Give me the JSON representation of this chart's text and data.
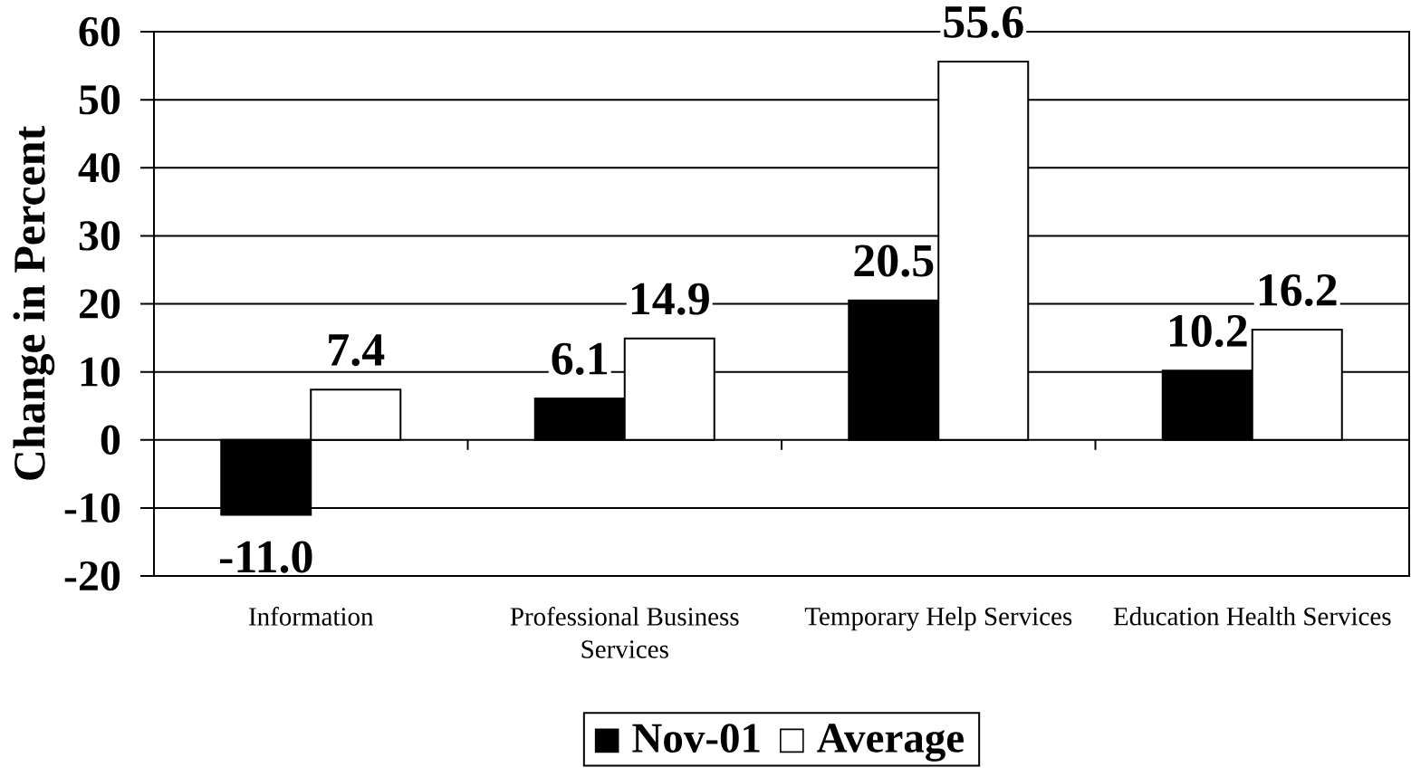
{
  "chart_data": {
    "type": "bar",
    "ylabel": "Change in Percent",
    "categories": [
      "Information",
      "Professional Business Services",
      "Temporary Help Services",
      "Education Health Services"
    ],
    "series": [
      {
        "name": "Nov-01",
        "color": "#000000",
        "values": [
          -11.0,
          6.1,
          20.5,
          10.2
        ],
        "value_labels": [
          "-11.0",
          "6.1",
          "20.5",
          "10.2"
        ]
      },
      {
        "name": "Average",
        "color": "#ffffff",
        "values": [
          7.4,
          14.9,
          55.6,
          16.2
        ],
        "value_labels": [
          "7.4",
          "14.9",
          "55.6",
          "16.2"
        ]
      }
    ],
    "ylim": [
      -20,
      60
    ],
    "yticks": [
      -20,
      -10,
      0,
      10,
      20,
      30,
      40,
      50,
      60
    ],
    "grid": "y",
    "legend": "bottom"
  }
}
